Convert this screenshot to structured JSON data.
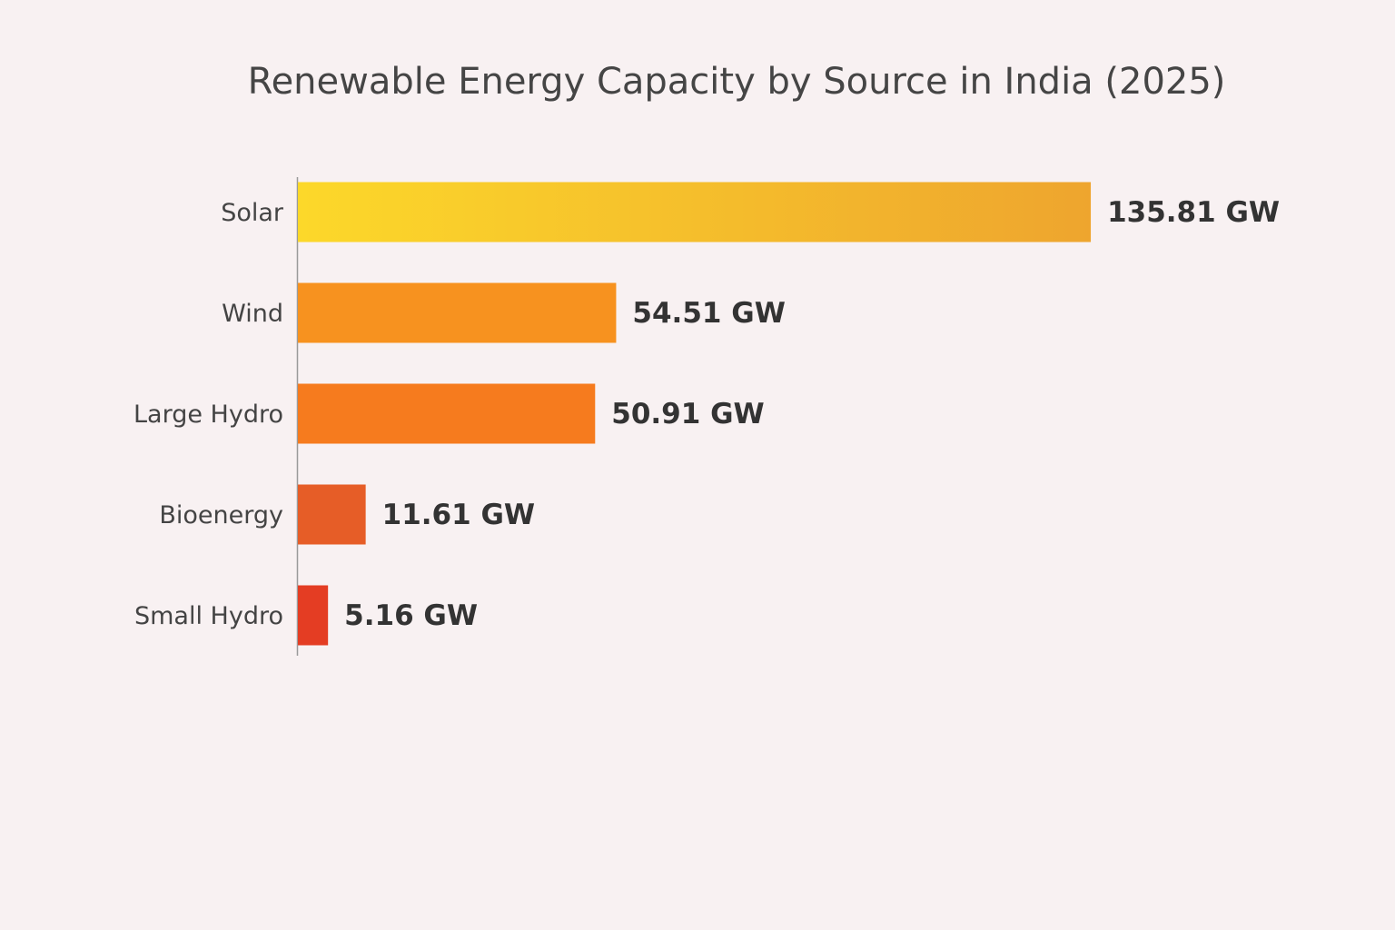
{
  "chart_data": {
    "type": "barh",
    "title": "Renewable Energy Capacity by Source in India (2025)",
    "categories": [
      "Solar",
      "Wind",
      "Large Hydro",
      "Bioenergy",
      "Small Hydro"
    ],
    "values": [
      135.81,
      54.51,
      50.91,
      11.61,
      5.16
    ],
    "value_labels": [
      "135.81 GW",
      "54.51 GW",
      "50.91 GW",
      "11.61 GW",
      "5.16 GW"
    ],
    "colors": [
      "#f4b52c",
      "#f7921f",
      "#f67b1e",
      "#e65d27",
      "#e43d23"
    ],
    "xlim": [
      0,
      140
    ]
  }
}
